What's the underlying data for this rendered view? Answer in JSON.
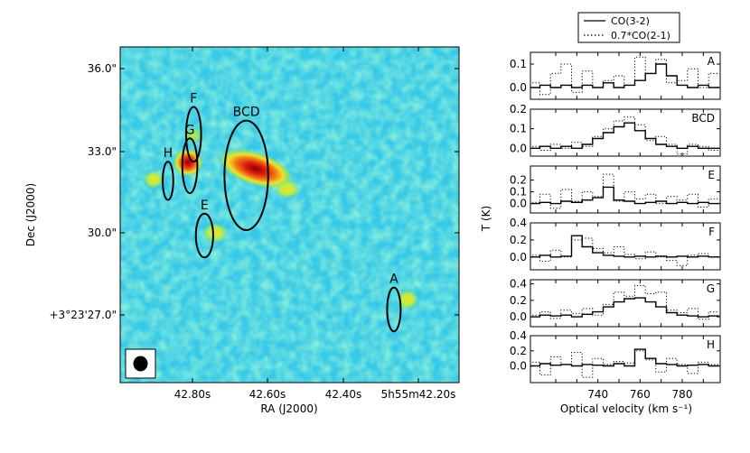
{
  "map": {
    "xlabel": "RA (J2000)",
    "ylabel": "Dec (J2000)",
    "xticks": [
      "42.80s",
      "42.60s",
      "42.40s",
      "5h55m42.20s"
    ],
    "yticks": [
      "36.0\"",
      "33.0\"",
      "30.0\"",
      "+3°23'27.0\""
    ],
    "regions": [
      {
        "label": "F",
        "ra": 42.797,
        "dec": 33.6,
        "rx": 0.02,
        "ry": 1.0
      },
      {
        "label": "G",
        "ra": 42.807,
        "dec": 32.45,
        "rx": 0.02,
        "ry": 1.0
      },
      {
        "label": "H",
        "ra": 42.865,
        "dec": 31.9,
        "rx": 0.014,
        "ry": 0.7
      },
      {
        "label": "BCD",
        "ra": 42.657,
        "dec": 32.1,
        "rx": 0.058,
        "ry": 2.0
      },
      {
        "label": "E",
        "ra": 42.768,
        "dec": 29.9,
        "rx": 0.023,
        "ry": 0.8
      },
      {
        "label": "A",
        "ra": 42.265,
        "dec": 27.2,
        "rx": 0.018,
        "ry": 0.8
      }
    ],
    "colors": {
      "background": "#36c9e8",
      "emission_low": "#9ce64a",
      "emission_mid": "#f0e030",
      "emission_high": "#e02010",
      "emission_peak": "#8a0000"
    }
  },
  "legend": {
    "entries": [
      {
        "name": "CO(3-2)",
        "style": "solid"
      },
      {
        "name": "0.7*CO(2-1)",
        "style": "dotted"
      }
    ]
  },
  "spectra": {
    "xlabel": "Optical velocity (km s⁻¹)",
    "ylabel": "T (K)",
    "xticks": [
      "740",
      "760",
      "780"
    ],
    "xlim": [
      708,
      798
    ]
  },
  "chart_data": {
    "type": "line",
    "x": [
      710,
      715,
      720,
      725,
      730,
      735,
      740,
      745,
      750,
      755,
      760,
      765,
      770,
      775,
      780,
      785,
      790,
      795
    ],
    "panels": [
      {
        "label": "A",
        "ylim": [
          -0.05,
          0.15
        ],
        "yticks": [
          0.0,
          0.1
        ],
        "ytick_labels": [
          "0.0",
          "0.1"
        ],
        "series": [
          {
            "name": "CO(3-2)",
            "values": [
              0.0,
              0.01,
              0.0,
              0.01,
              0.0,
              0.01,
              0.0,
              0.02,
              0.0,
              0.01,
              0.03,
              0.06,
              0.1,
              0.05,
              0.01,
              0.0,
              0.01,
              0.0
            ]
          },
          {
            "name": "0.7*CO(2-1)",
            "values": [
              0.02,
              -0.03,
              0.06,
              0.1,
              -0.02,
              0.07,
              0.0,
              0.03,
              0.05,
              0.01,
              0.13,
              0.06,
              0.12,
              0.02,
              0.03,
              0.08,
              0.0,
              0.06
            ]
          }
        ]
      },
      {
        "label": "BCD",
        "ylim": [
          -0.04,
          0.2
        ],
        "yticks": [
          0.0,
          0.1,
          0.2
        ],
        "ytick_labels": [
          "0.0",
          "0.1",
          "0.2"
        ],
        "series": [
          {
            "name": "CO(3-2)",
            "values": [
              0.0,
              0.01,
              0.0,
              0.01,
              0.0,
              0.02,
              0.05,
              0.08,
              0.11,
              0.13,
              0.09,
              0.05,
              0.02,
              0.01,
              0.0,
              0.01,
              0.0,
              0.0
            ]
          },
          {
            "name": "0.7*CO(2-1)",
            "values": [
              0.01,
              -0.01,
              0.02,
              0.0,
              0.03,
              0.01,
              0.06,
              0.1,
              0.14,
              0.16,
              0.12,
              0.04,
              0.06,
              0.02,
              -0.03,
              0.02,
              0.01,
              -0.01
            ]
          }
        ]
      },
      {
        "label": "E",
        "ylim": [
          -0.08,
          0.32
        ],
        "yticks": [
          0.0,
          0.1,
          0.2
        ],
        "ytick_labels": [
          "0.0",
          "0.1",
          "0.2"
        ],
        "series": [
          {
            "name": "CO(3-2)",
            "values": [
              0.0,
              0.01,
              0.0,
              0.02,
              0.01,
              0.03,
              0.05,
              0.14,
              0.03,
              0.02,
              0.0,
              0.01,
              0.02,
              0.0,
              0.01,
              0.0,
              0.01,
              0.0
            ]
          },
          {
            "name": "0.7*CO(2-1)",
            "values": [
              0.01,
              0.08,
              -0.04,
              0.12,
              0.02,
              0.1,
              0.06,
              0.25,
              0.02,
              0.1,
              0.04,
              0.08,
              0.0,
              0.06,
              0.03,
              0.08,
              -0.03,
              0.04
            ]
          }
        ]
      },
      {
        "label": "F",
        "ylim": [
          -0.15,
          0.4
        ],
        "yticks": [
          0.0,
          0.2,
          0.4
        ],
        "ytick_labels": [
          "0.0",
          "0.2",
          "0.4"
        ],
        "series": [
          {
            "name": "CO(3-2)",
            "values": [
              0.0,
              0.02,
              0.0,
              0.01,
              0.25,
              0.12,
              0.05,
              0.02,
              0.01,
              0.0,
              0.01,
              0.0,
              0.01,
              0.0,
              0.01,
              0.0,
              0.01,
              0.0
            ]
          },
          {
            "name": "0.7*CO(2-1)",
            "values": [
              0.02,
              -0.05,
              0.08,
              0.0,
              0.2,
              0.22,
              0.1,
              0.05,
              0.12,
              0.03,
              -0.02,
              0.06,
              0.0,
              -0.04,
              -0.1,
              0.02,
              0.04,
              0.0
            ]
          }
        ]
      },
      {
        "label": "G",
        "ylim": [
          -0.12,
          0.45
        ],
        "yticks": [
          0.0,
          0.2,
          0.4
        ],
        "ytick_labels": [
          "0.0",
          "0.2",
          "0.4"
        ],
        "series": [
          {
            "name": "CO(3-2)",
            "values": [
              0.0,
              0.02,
              0.01,
              0.02,
              0.0,
              0.03,
              0.06,
              0.12,
              0.18,
              0.22,
              0.23,
              0.18,
              0.12,
              0.05,
              0.02,
              0.01,
              0.0,
              0.01
            ]
          },
          {
            "name": "0.7*CO(2-1)",
            "values": [
              0.02,
              0.06,
              -0.02,
              0.08,
              0.04,
              0.1,
              0.02,
              0.15,
              0.3,
              0.25,
              0.38,
              0.28,
              0.3,
              0.08,
              0.05,
              0.1,
              -0.03,
              0.06
            ]
          }
        ]
      },
      {
        "label": "H",
        "ylim": [
          -0.22,
          0.4
        ],
        "yticks": [
          0.0,
          0.2,
          0.4
        ],
        "ytick_labels": [
          "0.0",
          "0.2",
          "0.4"
        ],
        "series": [
          {
            "name": "CO(3-2)",
            "values": [
              0.0,
              0.03,
              0.01,
              0.02,
              0.0,
              0.02,
              0.01,
              0.0,
              0.03,
              0.0,
              0.22,
              0.1,
              0.03,
              0.02,
              0.0,
              0.01,
              0.02,
              0.0
            ]
          },
          {
            "name": "0.7*CO(2-1)",
            "values": [
              0.05,
              -0.12,
              0.12,
              0.02,
              0.18,
              -0.15,
              0.1,
              0.02,
              0.06,
              0.04,
              0.2,
              0.08,
              -0.08,
              0.1,
              0.02,
              -0.1,
              0.05,
              0.02
            ]
          }
        ]
      }
    ]
  }
}
